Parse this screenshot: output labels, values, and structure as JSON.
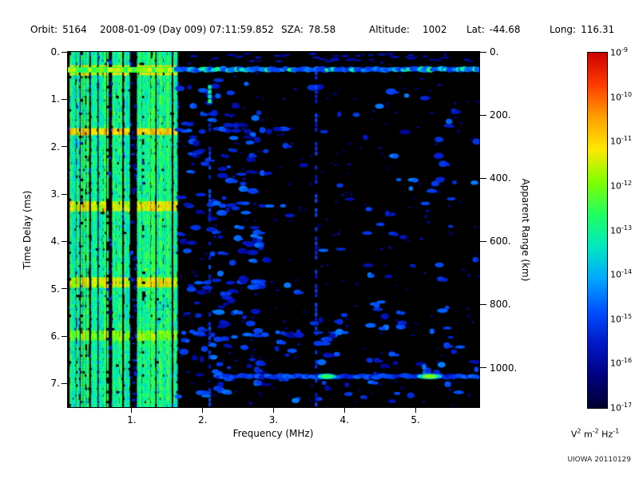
{
  "header": {
    "orbit_label": "Orbit:",
    "orbit_value": "5164",
    "datetime": "2008-01-09 (Day 009) 07:11:59.852",
    "sza_label": "SZA:",
    "sza_value": "78.58",
    "altitude_label": "Altitude:",
    "altitude_value": "1002",
    "lat_label": "Lat:",
    "lat_value": "-44.68",
    "long_label": "Long:",
    "long_value": "116.31"
  },
  "axes": {
    "x": {
      "label": "Frequency (MHz)",
      "min": 0.1,
      "max": 5.9,
      "ticks": [
        1,
        2,
        3,
        4,
        5
      ],
      "tick_labels": [
        "1.",
        "2.",
        "3.",
        "4.",
        "5."
      ]
    },
    "y_left": {
      "label": "Time Delay (ms)",
      "min": 0,
      "max": 7.5,
      "ticks": [
        0,
        1,
        2,
        3,
        4,
        5,
        6,
        7
      ],
      "tick_labels": [
        "0.",
        "1.",
        "2.",
        "3.",
        "4.",
        "5.",
        "6.",
        "7."
      ]
    },
    "y_right": {
      "label": "Apparent Range (km)",
      "km_per_ms": 150,
      "ticks_km": [
        0,
        200,
        400,
        600,
        800,
        1000
      ],
      "tick_labels": [
        "0.",
        "200.",
        "400.",
        "600.",
        "800.",
        "1000."
      ]
    }
  },
  "colorbar": {
    "gradient": [
      "#cc0000",
      "#ff3c00",
      "#ffa000",
      "#ffe800",
      "#80ff00",
      "#20ff60",
      "#00e8c0",
      "#00a8ff",
      "#0050ff",
      "#0018c8",
      "#000080",
      "#000030"
    ],
    "tick_exponents": [
      "-9",
      "-10",
      "-11",
      "-12",
      "-13",
      "-14",
      "-15",
      "-16",
      "-17"
    ],
    "units_segments": [
      {
        "t": "V"
      },
      {
        "s": "2"
      },
      {
        "t": " m"
      },
      {
        "s": "-2"
      },
      {
        "t": " Hz"
      },
      {
        "s": "-1"
      }
    ]
  },
  "credit": "UIOWA 20110129",
  "chart_data": {
    "type": "heatmap",
    "title": "AIS ionogram spectrogram, Orbit 5164, 2008-01-09 07:11:59.852",
    "xlabel": "Frequency (MHz)",
    "ylabel_left": "Time Delay (ms)",
    "ylabel_right": "Apparent Range (km)",
    "x_range_mhz": [
      0.1,
      5.9
    ],
    "y_range_ms": [
      0,
      7.5
    ],
    "y_axis_inverted": true,
    "intensity_scale": {
      "min": "1e-17",
      "max": "1e-9",
      "units": "V^2 m^-2 Hz^-1",
      "scale": "log"
    },
    "description": "Black background. Dense green/cyan vertical interference striping from 0.1-1.65 MHz over all delays with brighter horizontal harmonic rows near 1.65, 3.2, 4.85 and 5.95 ms. Bright horizontal echo band near 0.37 ms delay across all frequencies (green at low freq, blue/cyan dashes above 1.65 MHz). Scattered faint blue echo blobs over 1.65-5.9 MHz. Faint vertical lines near 2.1 MHz (bright cyan segment 0.6-1.3 ms) and 3.6 MHz. Horizontal blue band near 6.85 ms from 2.2-5.9 MHz with bright cyan spots near 3.75 and 5.2 MHz.",
    "features": {
      "seed": 20110129,
      "low_freq_interference_mhz": [
        0.12,
        1.65
      ],
      "echo_band_ms": 0.37,
      "harmonic_bands": [
        [
          1.65,
          0.25
        ],
        [
          3.22,
          0.2
        ],
        [
          4.85,
          0.2
        ],
        [
          5.95,
          0.12
        ]
      ],
      "vertical_lines_mhz": [
        2.1,
        3.6
      ],
      "bottom_band": {
        "delay_ms": 6.85,
        "freq_mhz": [
          2.2,
          5.9
        ],
        "bright_spots_mhz": [
          3.75,
          5.2
        ]
      },
      "scatter_blob_count": 300
    }
  }
}
